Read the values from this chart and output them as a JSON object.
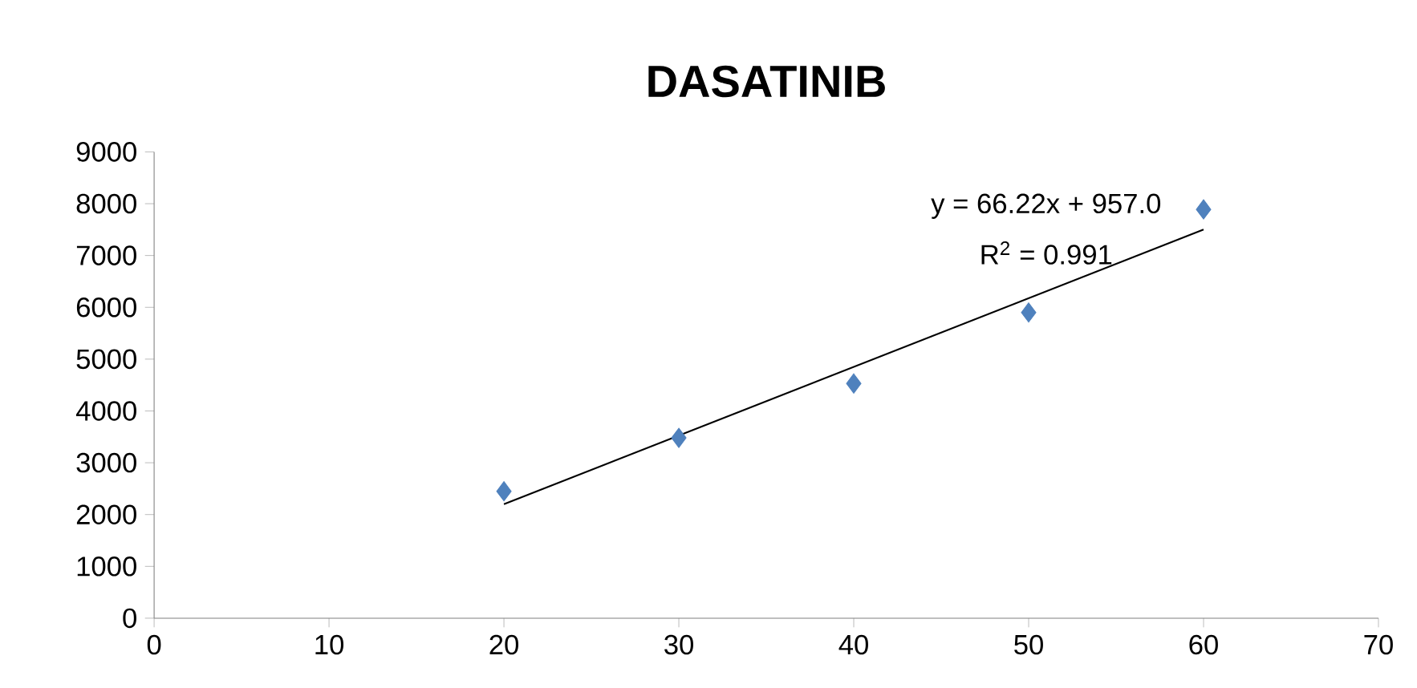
{
  "chart_data": {
    "type": "scatter",
    "title": "DASATINIB",
    "series": [
      {
        "color": "#4f81bd",
        "marker": "diamond",
        "x": [
          20,
          30,
          40,
          50,
          60
        ],
        "values": [
          2450,
          3480,
          4530,
          5900,
          7890
        ]
      },
      {
        "type": "line",
        "color": "#000000",
        "marker": "none",
        "x": [
          20,
          60
        ],
        "values": [
          2200,
          7500
        ]
      }
    ],
    "annotations": [
      "y = 66.22x + 957.0",
      "R$^{2}$ = 0.991"
    ],
    "xlim": [
      0,
      70
    ],
    "xticks": [
      0,
      10,
      20,
      30,
      40,
      50,
      60,
      70
    ],
    "ylim": [
      0,
      9000
    ],
    "yticks": [
      0,
      1000,
      2000,
      3000,
      4000,
      5000,
      6000,
      7000,
      8000,
      9000
    ]
  }
}
